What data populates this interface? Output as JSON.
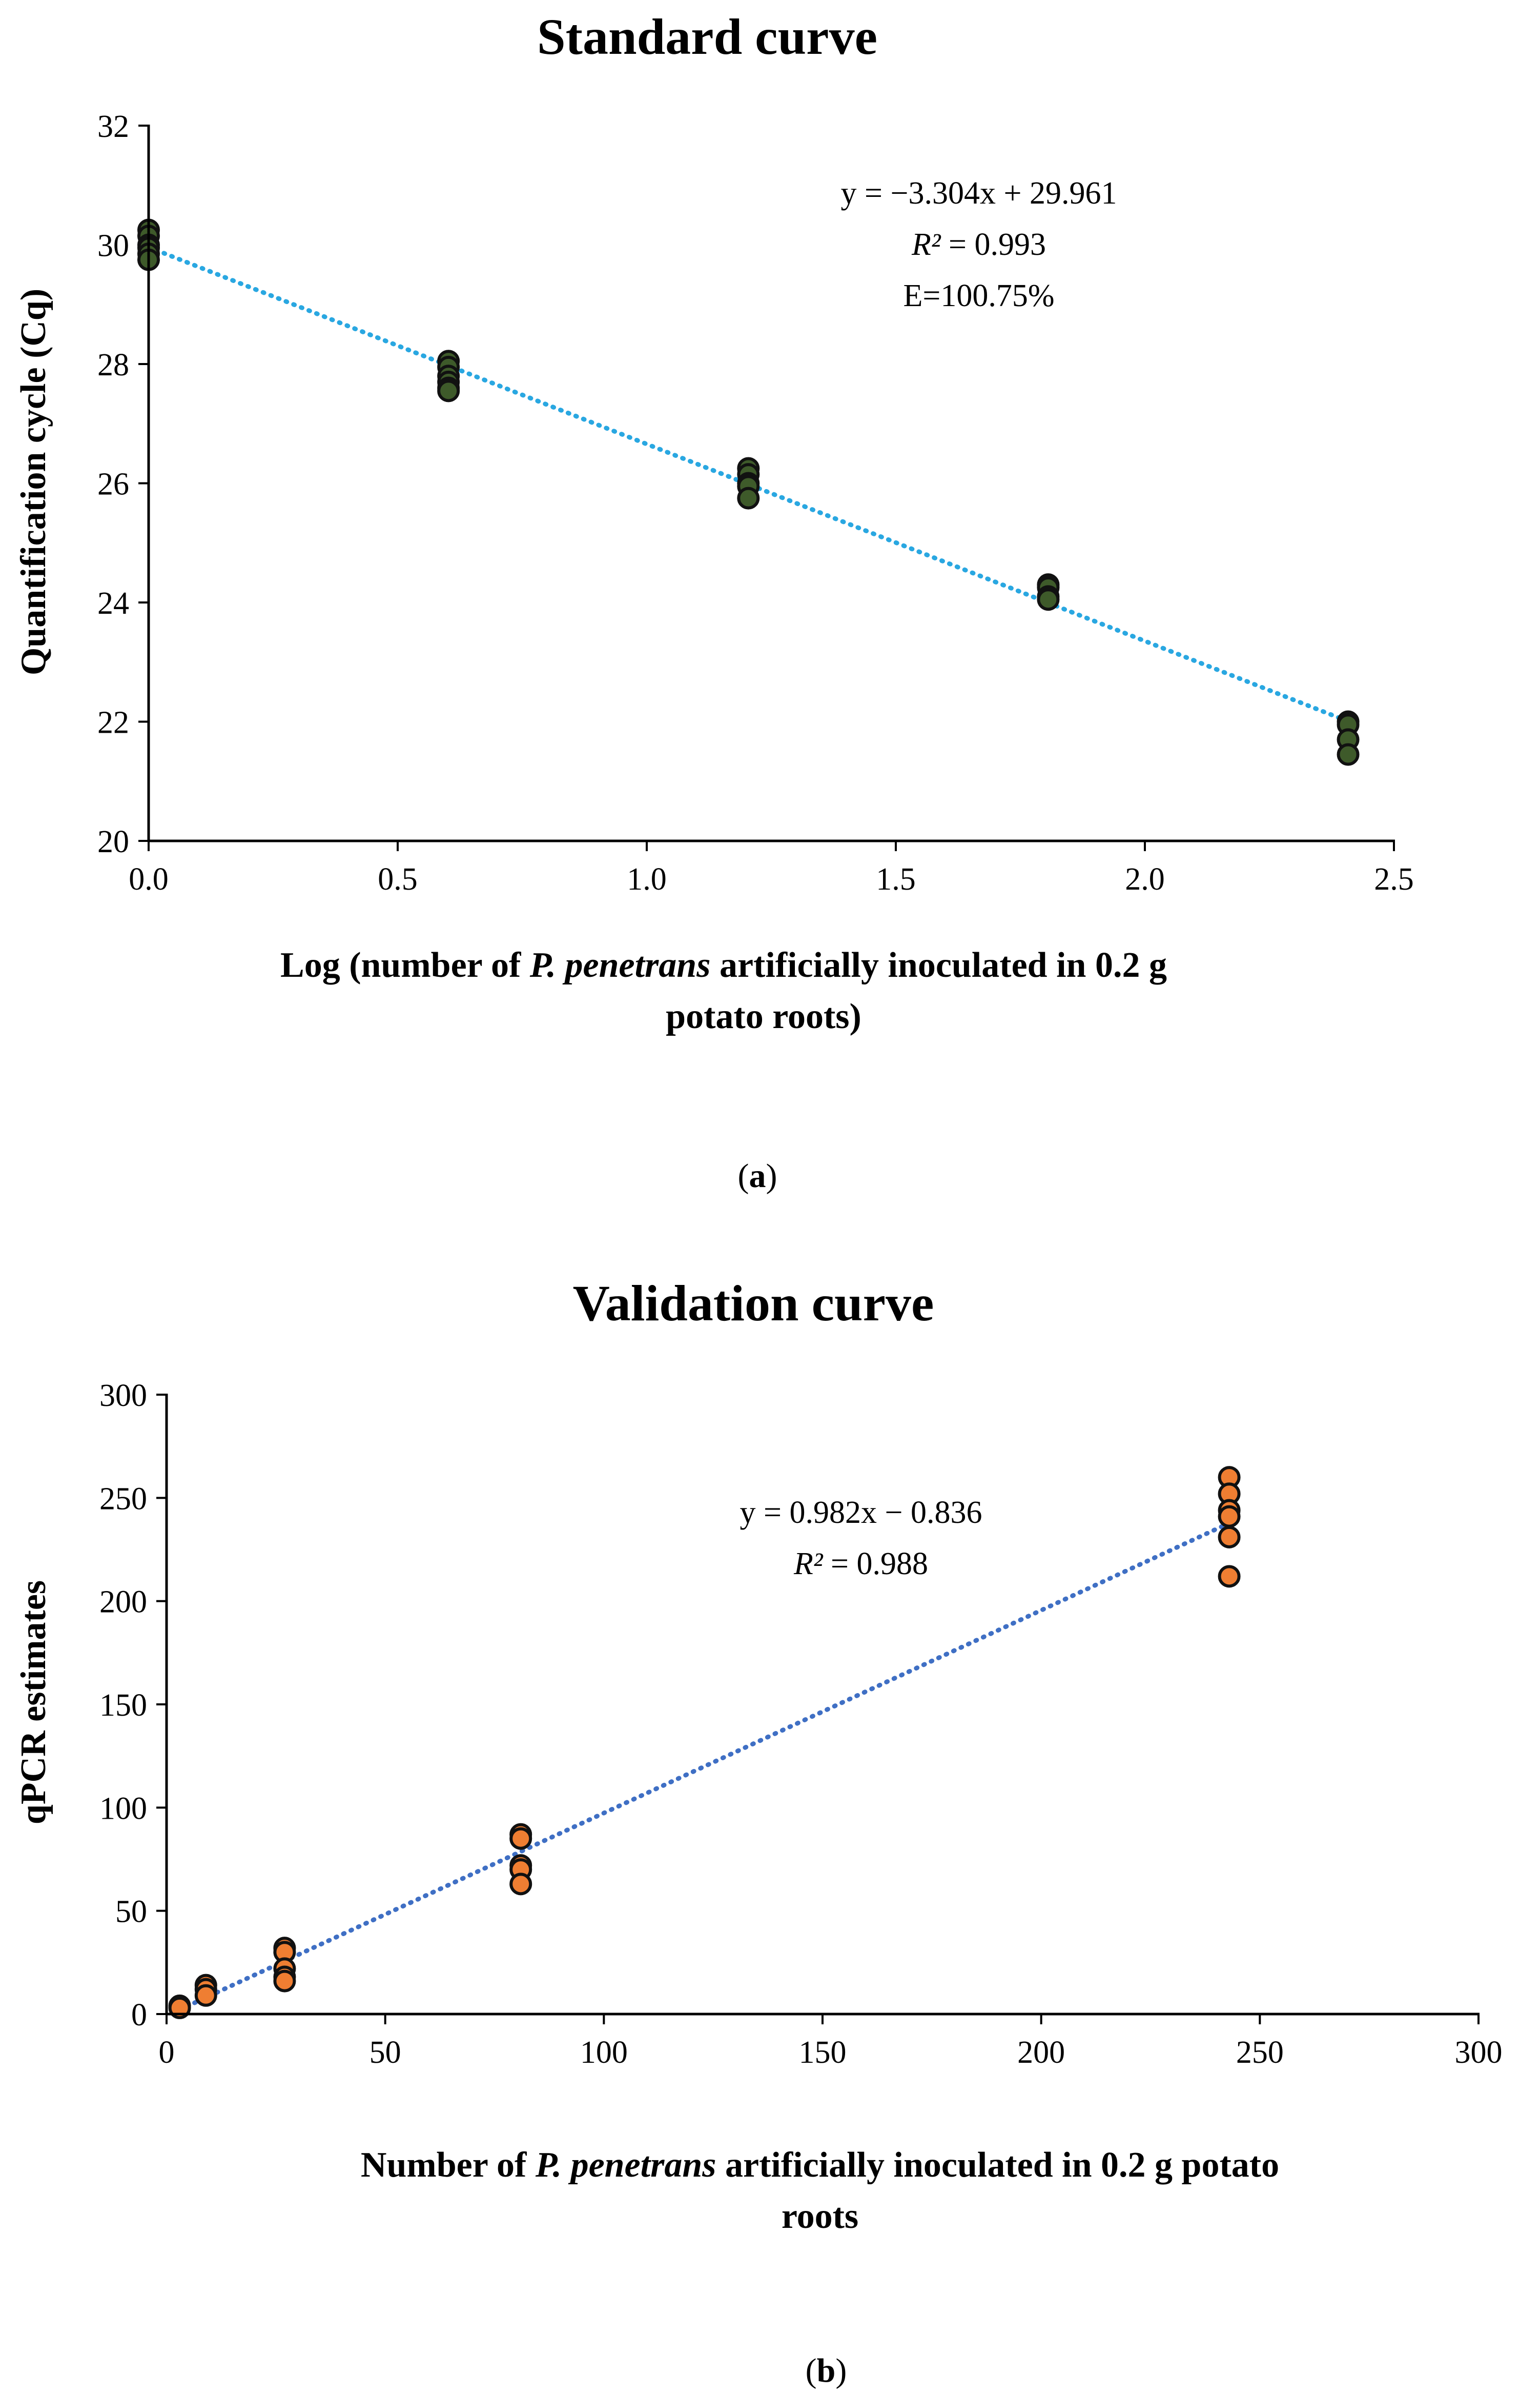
{
  "chart_data": [
    {
      "id": "a",
      "type": "scatter",
      "title": "Standard curve",
      "xlabel_parts": [
        {
          "text": "Log (number of ",
          "italic": false
        },
        {
          "text": "P. penetrans",
          "italic": true
        },
        {
          "text": " artificially inoculated in 0.2 g",
          "italic": false
        }
      ],
      "xlabel_line2": "potato roots)",
      "ylabel": "Quantification cycle (Cq)",
      "xlim": [
        0,
        2.5
      ],
      "ylim": [
        20,
        32
      ],
      "xticks": [
        0,
        0.5,
        1,
        1.5,
        2,
        2.5
      ],
      "xtick_labels": [
        "0.0",
        "0.5",
        "1.0",
        "1.5",
        "2.0",
        "2.5"
      ],
      "yticks": [
        20,
        22,
        24,
        26,
        28,
        30,
        32
      ],
      "ytick_labels": [
        "20",
        "22",
        "24",
        "26",
        "28",
        "30",
        "32"
      ],
      "series": [
        {
          "name": "Cq",
          "color": "#3e5a2a",
          "x": [
            0,
            0,
            0,
            0,
            0,
            0,
            0.602,
            0.602,
            0.602,
            0.602,
            0.602,
            0.602,
            1.204,
            1.204,
            1.204,
            1.204,
            1.204,
            1.806,
            1.806,
            1.806,
            1.806,
            2.408,
            2.408,
            2.408,
            2.408
          ],
          "y": [
            30.25,
            30.15,
            30.0,
            29.95,
            29.85,
            29.75,
            28.05,
            27.95,
            27.8,
            27.7,
            27.6,
            27.55,
            26.25,
            26.15,
            26.0,
            25.95,
            25.75,
            24.3,
            24.25,
            24.1,
            24.05,
            22.0,
            21.95,
            21.7,
            21.45
          ]
        }
      ],
      "trendline": {
        "slope": -3.304,
        "intercept": 29.961,
        "x_range": [
          0,
          2.408
        ],
        "color": "#29a7e1"
      },
      "annotation": {
        "eq": "y = −3.304x + 29.961",
        "r2_symbol": "R²",
        "r2_value": " = 0.993",
        "efficiency": "E=100.75%"
      },
      "panel_label": "a"
    },
    {
      "id": "b",
      "type": "scatter",
      "title": "Validation curve",
      "xlabel_parts": [
        {
          "text": "Number of ",
          "italic": false
        },
        {
          "text": "P. penetrans",
          "italic": true
        },
        {
          "text": " artificially inoculated in 0.2 g potato",
          "italic": false
        }
      ],
      "xlabel_line2": "roots",
      "ylabel": "qPCR estimates",
      "xlim": [
        0,
        300
      ],
      "ylim": [
        0,
        300
      ],
      "xticks": [
        0,
        50,
        100,
        150,
        200,
        250,
        300
      ],
      "xtick_labels": [
        "0",
        "50",
        "100",
        "150",
        "200",
        "250",
        "300"
      ],
      "yticks": [
        0,
        50,
        100,
        150,
        200,
        250,
        300
      ],
      "ytick_labels": [
        "0",
        "50",
        "100",
        "150",
        "200",
        "250",
        "300"
      ],
      "series": [
        {
          "name": "qPCR",
          "color": "#ef7e32",
          "x": [
            3,
            3,
            9,
            9,
            9,
            27,
            27,
            27,
            27,
            27,
            81,
            81,
            81,
            81,
            81,
            243,
            243,
            243,
            243,
            243,
            243
          ],
          "y": [
            4,
            3,
            14,
            12,
            9,
            32,
            30,
            22,
            18,
            16,
            87,
            85,
            72,
            70,
            63,
            260,
            252,
            244,
            241,
            231,
            212
          ]
        }
      ],
      "trendline": {
        "slope": 0.982,
        "intercept": -0.836,
        "x_range": [
          3,
          243
        ],
        "color": "#3f6fc4"
      },
      "annotation": {
        "eq": "y = 0.982x − 0.836",
        "r2_symbol": "R²",
        "r2_value": " = 0.988"
      },
      "panel_label": "b"
    }
  ]
}
